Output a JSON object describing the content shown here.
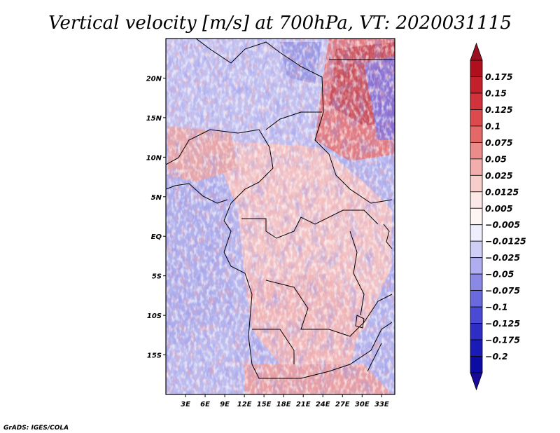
{
  "chart_data": {
    "type": "heatmap",
    "title": "Vertical velocity [m/s] at 700hPa, VT: 2020031115",
    "variable": "Vertical velocity",
    "units": "m/s",
    "level": "700hPa",
    "valid_time": "2020031115",
    "xlim": [
      0,
      35
    ],
    "ylim": [
      -20,
      25
    ],
    "x_ticks": [
      {
        "value": 3,
        "label": "3E"
      },
      {
        "value": 6,
        "label": "6E"
      },
      {
        "value": 9,
        "label": "9E"
      },
      {
        "value": 12,
        "label": "12E"
      },
      {
        "value": 15,
        "label": "15E"
      },
      {
        "value": 18,
        "label": "18E"
      },
      {
        "value": 21,
        "label": "21E"
      },
      {
        "value": 24,
        "label": "24E"
      },
      {
        "value": 27,
        "label": "27E"
      },
      {
        "value": 30,
        "label": "30E"
      },
      {
        "value": 33,
        "label": "33E"
      }
    ],
    "y_ticks": [
      {
        "value": 20,
        "label": "20N"
      },
      {
        "value": 15,
        "label": "15N"
      },
      {
        "value": 10,
        "label": "10N"
      },
      {
        "value": 5,
        "label": "5N"
      },
      {
        "value": 0,
        "label": "EQ"
      },
      {
        "value": -5,
        "label": "5S"
      },
      {
        "value": -10,
        "label": "10S"
      },
      {
        "value": -15,
        "label": "15S"
      }
    ],
    "colorbar": {
      "labels": [
        "0.175",
        "0.15",
        "0.125",
        "0.1",
        "0.075",
        "0.05",
        "0.025",
        "0.0125",
        "0.005",
        "−0.005",
        "−0.0125",
        "−0.025",
        "−0.05",
        "−0.075",
        "−0.1",
        "−0.125",
        "−0.175",
        "−0.2"
      ],
      "colors": [
        "#b0101e",
        "#c4202c",
        "#d2323a",
        "#dc4a4e",
        "#e46868",
        "#ec8c8a",
        "#f2aeac",
        "#f8cecc",
        "#fce8e6",
        "#fff6f4",
        "#eeeefc",
        "#cecef6",
        "#aeaef0",
        "#8a8ae6",
        "#6a6ade",
        "#4a4ad4",
        "#2e2ec6",
        "#1a1ab6",
        "#0c0ca4"
      ],
      "top_color": "#9a1020",
      "bottom_color": "#1a0a9a"
    }
  },
  "footer": {
    "credit": "GrADS: IGES/COLA"
  }
}
